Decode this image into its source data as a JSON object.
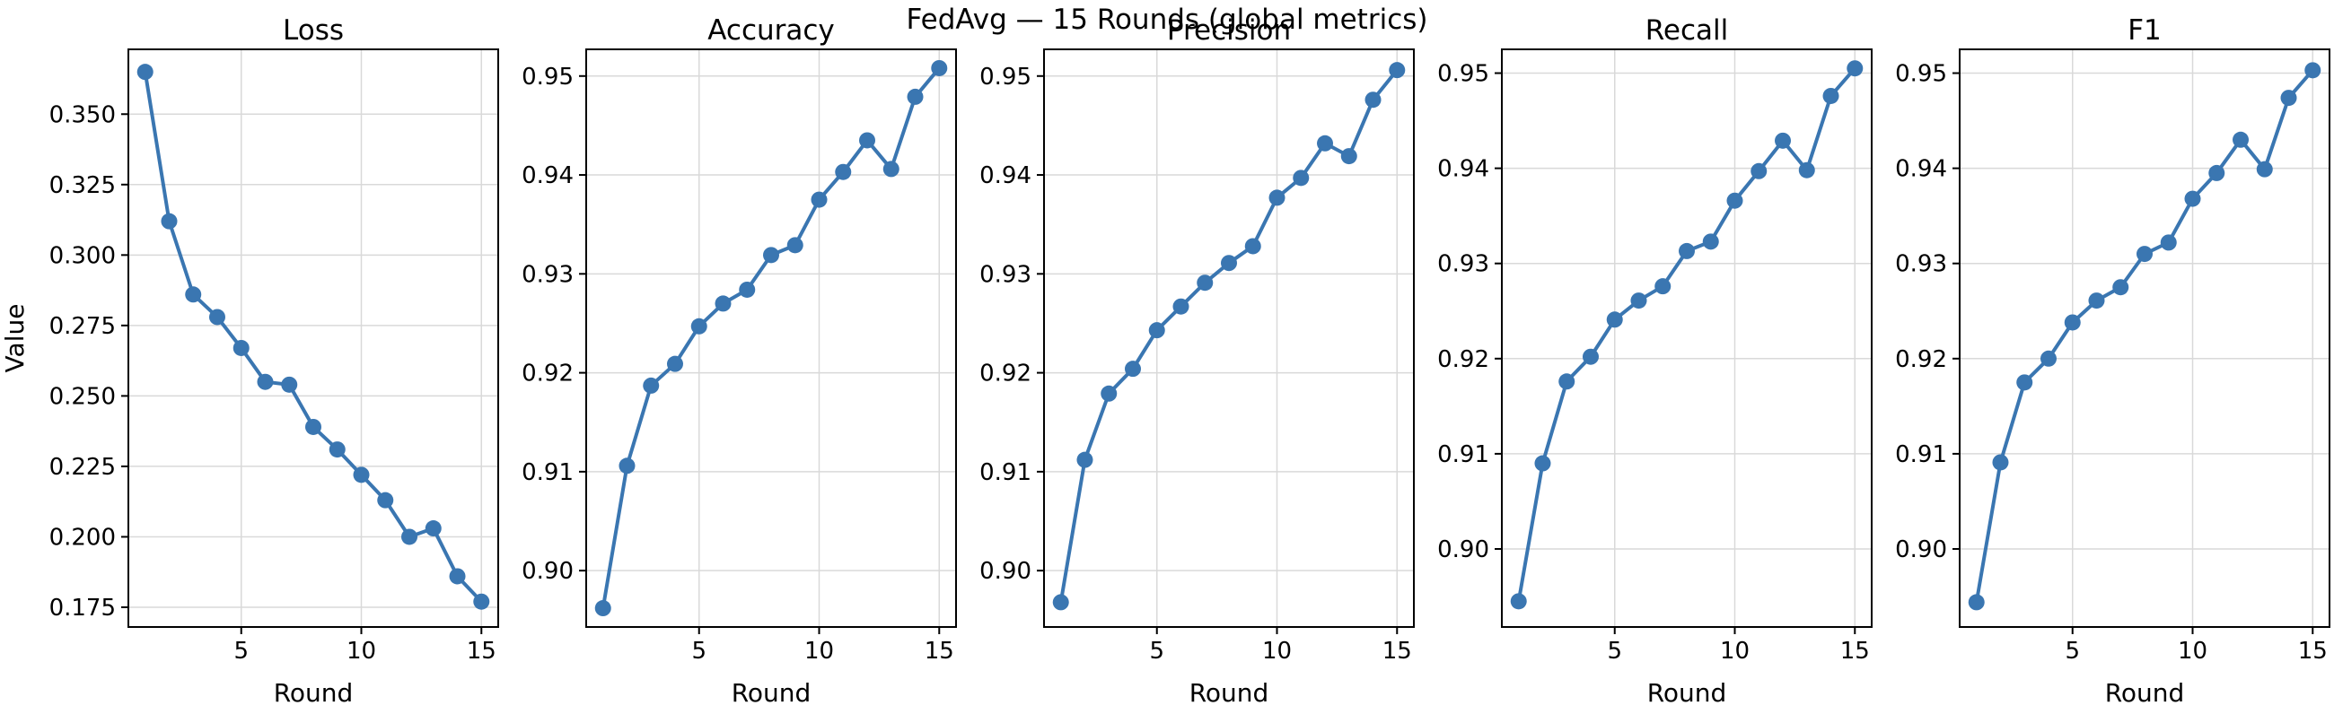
{
  "figure": {
    "suptitle": "FedAvg — 15 Rounds (global metrics)"
  },
  "colors": {
    "series": "#3a76b1",
    "grid": "#d9d9d9",
    "axis": "#000000"
  },
  "chart_data": [
    {
      "type": "line",
      "title": "Loss",
      "xlabel": "Round",
      "ylabel": "Value",
      "xlim": [
        0.3,
        15.7
      ],
      "ylim": [
        0.168,
        0.373
      ],
      "xticks": [
        5,
        10,
        15
      ],
      "yticks": [
        0.175,
        0.2,
        0.225,
        0.25,
        0.275,
        0.3,
        0.325,
        0.35
      ],
      "ytick_decimals": 3,
      "grid": true,
      "x": [
        1,
        2,
        3,
        4,
        5,
        6,
        7,
        8,
        9,
        10,
        11,
        12,
        13,
        14,
        15
      ],
      "values": [
        0.365,
        0.312,
        0.286,
        0.278,
        0.267,
        0.255,
        0.254,
        0.239,
        0.231,
        0.222,
        0.213,
        0.2,
        0.203,
        0.186,
        0.177
      ]
    },
    {
      "type": "line",
      "title": "Accuracy",
      "xlabel": "Round",
      "ylabel": "",
      "xlim": [
        0.3,
        15.7
      ],
      "ylim": [
        0.8943,
        0.9527
      ],
      "xticks": [
        5,
        10,
        15
      ],
      "yticks": [
        0.9,
        0.91,
        0.92,
        0.93,
        0.94,
        0.95
      ],
      "ytick_decimals": 2,
      "grid": true,
      "x": [
        1,
        2,
        3,
        4,
        5,
        6,
        7,
        8,
        9,
        10,
        11,
        12,
        13,
        14,
        15
      ],
      "values": [
        0.8962,
        0.9106,
        0.9187,
        0.9209,
        0.9247,
        0.927,
        0.9284,
        0.9319,
        0.9329,
        0.9375,
        0.9403,
        0.9435,
        0.9406,
        0.9479,
        0.9508
      ]
    },
    {
      "type": "line",
      "title": "Precision",
      "xlabel": "Round",
      "ylabel": "",
      "xlim": [
        0.3,
        15.7
      ],
      "ylim": [
        0.8943,
        0.9527
      ],
      "xticks": [
        5,
        10,
        15
      ],
      "yticks": [
        0.9,
        0.91,
        0.92,
        0.93,
        0.94,
        0.95
      ],
      "ytick_decimals": 2,
      "grid": true,
      "x": [
        1,
        2,
        3,
        4,
        5,
        6,
        7,
        8,
        9,
        10,
        11,
        12,
        13,
        14,
        15
      ],
      "values": [
        0.8968,
        0.9112,
        0.9179,
        0.9204,
        0.9243,
        0.9267,
        0.9291,
        0.9311,
        0.9328,
        0.9377,
        0.9397,
        0.9432,
        0.9419,
        0.9476,
        0.9506
      ]
    },
    {
      "type": "line",
      "title": "Recall",
      "xlabel": "Round",
      "ylabel": "",
      "xlim": [
        0.3,
        15.7
      ],
      "ylim": [
        0.8918,
        0.9525
      ],
      "xticks": [
        5,
        10,
        15
      ],
      "yticks": [
        0.9,
        0.91,
        0.92,
        0.93,
        0.94,
        0.95
      ],
      "ytick_decimals": 2,
      "grid": true,
      "x": [
        1,
        2,
        3,
        4,
        5,
        6,
        7,
        8,
        9,
        10,
        11,
        12,
        13,
        14,
        15
      ],
      "values": [
        0.8945,
        0.909,
        0.9176,
        0.9202,
        0.9241,
        0.9261,
        0.9276,
        0.9313,
        0.9323,
        0.9366,
        0.9397,
        0.9429,
        0.9398,
        0.9476,
        0.9505
      ]
    },
    {
      "type": "line",
      "title": "F1",
      "xlabel": "Round",
      "ylabel": "",
      "xlim": [
        0.3,
        15.7
      ],
      "ylim": [
        0.8918,
        0.9525
      ],
      "xticks": [
        5,
        10,
        15
      ],
      "yticks": [
        0.9,
        0.91,
        0.92,
        0.93,
        0.94,
        0.95
      ],
      "ytick_decimals": 2,
      "grid": true,
      "x": [
        1,
        2,
        3,
        4,
        5,
        6,
        7,
        8,
        9,
        10,
        11,
        12,
        13,
        14,
        15
      ],
      "values": [
        0.8944,
        0.9091,
        0.9175,
        0.92,
        0.9238,
        0.9261,
        0.9275,
        0.931,
        0.9322,
        0.9368,
        0.9395,
        0.943,
        0.9399,
        0.9474,
        0.9503
      ]
    }
  ]
}
